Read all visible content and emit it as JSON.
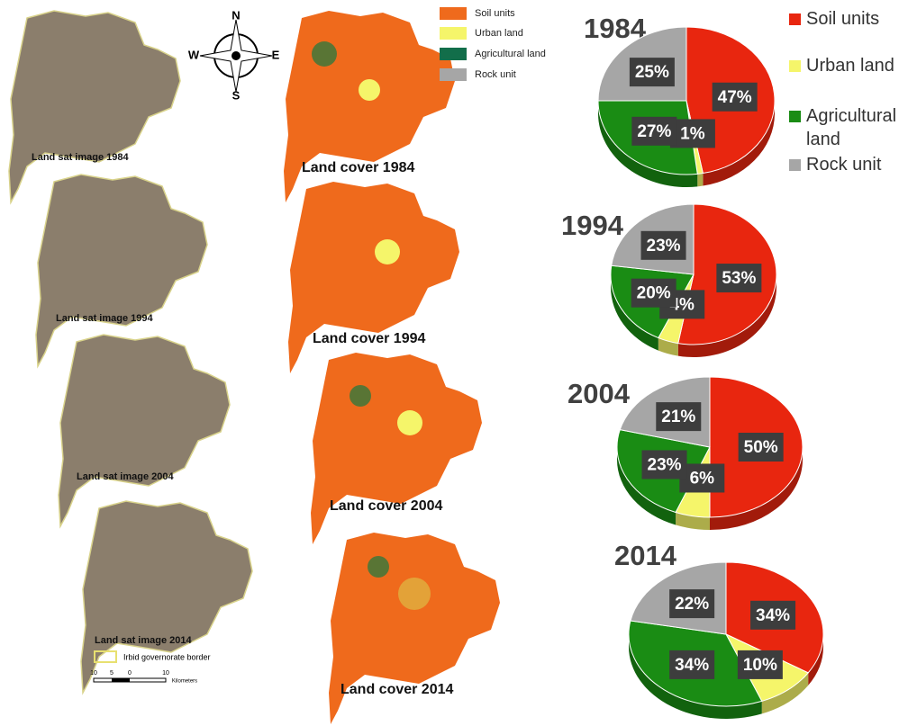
{
  "chart_data": [
    {
      "type": "pie",
      "title": "1984",
      "categories": [
        "Soil units",
        "Urban land",
        "Agricultural land",
        "Rock unit"
      ],
      "colors": [
        "#e8260f",
        "#f5f56a",
        "#1a8c14",
        "#a6a6a6"
      ],
      "values": [
        47,
        1,
        27,
        25
      ],
      "value_labels": [
        "47%",
        "1%",
        "27%",
        "25%"
      ]
    },
    {
      "type": "pie",
      "title": "1994",
      "values": [
        53,
        4,
        20,
        23
      ],
      "value_labels": [
        "53%",
        "4%",
        "20%",
        "23%"
      ]
    },
    {
      "type": "pie",
      "title": "2004",
      "values": [
        50,
        6,
        23,
        21
      ],
      "value_labels": [
        "50%",
        "6%",
        "23%",
        "21%"
      ]
    },
    {
      "type": "pie",
      "title": "2014",
      "values": [
        34,
        10,
        34,
        22
      ],
      "value_labels": [
        "34%",
        "10%",
        "34%",
        "22%"
      ]
    }
  ],
  "maps": {
    "satellite_labels": [
      "Land sat image 1984",
      "Land sat image 1994",
      "Land sat image 2004",
      "Land sat image 2014"
    ],
    "cover_labels": [
      "Land cover 1984",
      "Land cover 1994",
      "Land cover 2004",
      "Land cover 2014"
    ],
    "legend": [
      "Soil units",
      "Urban land",
      "Agricultural land",
      "Rock unit"
    ],
    "compass": [
      "N",
      "S",
      "W",
      "E"
    ],
    "border_label": "Irbid governorate border",
    "scale_labels": [
      "10",
      "5",
      "0",
      "10"
    ],
    "scale_unit": "Kilometers"
  }
}
